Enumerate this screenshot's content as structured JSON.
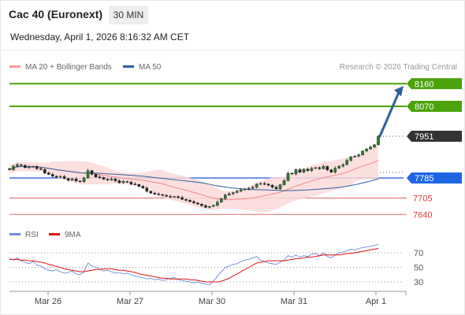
{
  "header": {
    "title": "Cac 40 (Euronext)",
    "timeframe": "30 MIN",
    "datetime": "Wednesday, April 1, 2026 8:16:32 AM CET"
  },
  "legend": {
    "bollinger": "MA 20 + Bollinger Bands",
    "ma50": "MA 50",
    "credit": "Research © 2026 Trading Central"
  },
  "rsi_legend": {
    "rsi": "RSI",
    "ma": "9MA"
  },
  "colors": {
    "green": "#4aa30a",
    "blue_level": "#1b4fd6",
    "red_level": "#e06a6a",
    "current": "#333333",
    "arrow": "#2f5f9e",
    "ma50": "#2f5f9e",
    "bollinger": "#f19a9a",
    "rsi": "#6b8bd6",
    "rsi_ma": "#e01010"
  },
  "chart_data": [
    {
      "type": "candlestick",
      "title": "Cac 40 (Euronext)",
      "ylim": [
        7600,
        8185
      ],
      "x_ticks": [
        "Mar 26",
        "Mar 27",
        "Mar 30",
        "Mar 31",
        "Apr 1"
      ],
      "levels": [
        {
          "value": 8160,
          "label": "8160",
          "style": "resistance"
        },
        {
          "value": 8070,
          "label": "8070",
          "style": "resistance"
        },
        {
          "value": 7951,
          "label": "7951",
          "style": "current"
        },
        {
          "value": 7785,
          "label": "7785",
          "style": "pivot"
        },
        {
          "value": 7705,
          "label": "7705",
          "style": "support"
        },
        {
          "value": 7640,
          "label": "7640",
          "style": "support"
        }
      ],
      "close": [
        7818,
        7832,
        7838,
        7835,
        7826,
        7829,
        7831,
        7822,
        7819,
        7805,
        7799,
        7792,
        7788,
        7791,
        7783,
        7776,
        7781,
        7773,
        7770,
        7785,
        7814,
        7800,
        7789,
        7787,
        7780,
        7777,
        7781,
        7774,
        7766,
        7771,
        7768,
        7761,
        7759,
        7752,
        7745,
        7732,
        7725,
        7721,
        7719,
        7716,
        7712,
        7710,
        7711,
        7707,
        7700,
        7696,
        7691,
        7686,
        7681,
        7675,
        7668,
        7672,
        7676,
        7689,
        7703,
        7717,
        7722,
        7727,
        7733,
        7738,
        7741,
        7744,
        7748,
        7761,
        7763,
        7761,
        7756,
        7748,
        7742,
        7758,
        7775,
        7804,
        7801,
        7818,
        7808,
        7820,
        7814,
        7823,
        7826,
        7822,
        7831,
        7817,
        7808,
        7824,
        7832,
        7838,
        7855,
        7869,
        7872,
        7877,
        7892,
        7900,
        7908,
        7917,
        7951
      ]
    },
    {
      "type": "line",
      "title": "RSI",
      "series": [
        {
          "name": "RSI"
        },
        {
          "name": "9MA"
        }
      ],
      "y_ticks": [
        30,
        50,
        70
      ],
      "ylim": [
        20,
        80
      ],
      "values_rsi": [
        62,
        60,
        63,
        59,
        57,
        55,
        58,
        53,
        52,
        48,
        46,
        45,
        47,
        44,
        42,
        43,
        45,
        41,
        40,
        44,
        56,
        52,
        50,
        48,
        45,
        46,
        44,
        42,
        43,
        41,
        42,
        40,
        38,
        37,
        36,
        34,
        35,
        33,
        34,
        32,
        33,
        35,
        36,
        33,
        32,
        31,
        30,
        29,
        30,
        28,
        27,
        26,
        31,
        38,
        44,
        50,
        52,
        54,
        55,
        58,
        60,
        61,
        63,
        65,
        60,
        58,
        56,
        55,
        54,
        57,
        60,
        66,
        64,
        67,
        64,
        66,
        65,
        68,
        69,
        66,
        70,
        65,
        63,
        67,
        70,
        71,
        73,
        75,
        74,
        76,
        77,
        78,
        79,
        80,
        82
      ],
      "values_ma": [
        61,
        61,
        61,
        60,
        60,
        59,
        59,
        58,
        57,
        56,
        54,
        53,
        51,
        50,
        48,
        47,
        46,
        45,
        44,
        44,
        45,
        46,
        47,
        47,
        48,
        48,
        48,
        47,
        46,
        46,
        45,
        44,
        43,
        41,
        40,
        39,
        38,
        37,
        36,
        35,
        35,
        34,
        34,
        34,
        34,
        34,
        33,
        33,
        32,
        31,
        30,
        30,
        30,
        30,
        31,
        33,
        35,
        38,
        41,
        44,
        47,
        50,
        53,
        56,
        57,
        58,
        59,
        59,
        59,
        59,
        59,
        60,
        61,
        62,
        62,
        63,
        64,
        64,
        65,
        66,
        67,
        67,
        67,
        67,
        67,
        68,
        69,
        69,
        70,
        71,
        72,
        73,
        74,
        75,
        76
      ]
    }
  ]
}
